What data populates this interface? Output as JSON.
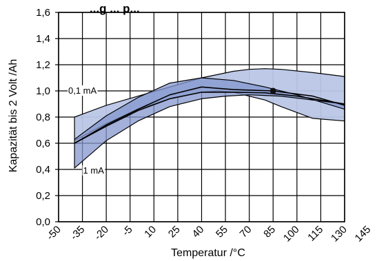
{
  "chart_data": {
    "type": "area",
    "title": "...g ... p...",
    "xlabel": "Temperatur /°C",
    "ylabel": "Kapazität bis 2 Volt /Ah",
    "xlim": [
      -50,
      145
    ],
    "ylim": [
      0,
      1.6
    ],
    "x_ticks": [
      -50,
      -35,
      -20,
      -5,
      10,
      25,
      40,
      55,
      70,
      85,
      100,
      115,
      130,
      145
    ],
    "y_ticks": [
      "0,0",
      "0,2",
      "0,4",
      "0,6",
      "0,8",
      "1,0",
      "1,2",
      "1,4",
      "1,6"
    ],
    "grid": true,
    "bands": [
      {
        "label": "0,1 mA",
        "color": "#b9c6e6",
        "upper": [
          [
            -40,
            0.8
          ],
          [
            -20,
            0.89
          ],
          [
            0,
            0.96
          ],
          [
            20,
            1.03
          ],
          [
            40,
            1.1
          ],
          [
            60,
            1.15
          ],
          [
            70,
            1.165
          ],
          [
            80,
            1.17
          ],
          [
            90,
            1.165
          ],
          [
            110,
            1.14
          ],
          [
            130,
            1.11
          ]
        ],
        "lower": [
          [
            -40,
            0.62
          ],
          [
            -20,
            0.75
          ],
          [
            0,
            0.86
          ],
          [
            20,
            0.94
          ],
          [
            40,
            0.99
          ],
          [
            50,
            1.0
          ],
          [
            60,
            0.99
          ],
          [
            80,
            0.93
          ],
          [
            90,
            0.88
          ],
          [
            110,
            0.79
          ],
          [
            130,
            0.77
          ]
        ]
      },
      {
        "label": "1 mA",
        "color": "#8396ce",
        "upper": [
          [
            -40,
            0.63
          ],
          [
            -20,
            0.81
          ],
          [
            0,
            0.95
          ],
          [
            20,
            1.06
          ],
          [
            40,
            1.1
          ],
          [
            60,
            1.08
          ],
          [
            80,
            1.03
          ],
          [
            100,
            0.97
          ],
          [
            130,
            0.86
          ]
        ],
        "lower": [
          [
            -40,
            0.41
          ],
          [
            -20,
            0.62
          ],
          [
            0,
            0.77
          ],
          [
            20,
            0.88
          ],
          [
            40,
            0.94
          ],
          [
            55,
            0.96
          ],
          [
            70,
            0.97
          ],
          [
            90,
            0.96
          ],
          [
            110,
            0.93
          ],
          [
            130,
            0.9
          ]
        ]
      }
    ],
    "lines": [
      {
        "name": "0,1 mA",
        "points": [
          [
            -40,
            0.6
          ],
          [
            -20,
            0.73
          ],
          [
            0,
            0.85
          ],
          [
            20,
            0.94
          ],
          [
            40,
            0.99
          ],
          [
            60,
            0.99
          ],
          [
            80,
            0.985
          ],
          [
            100,
            0.96
          ],
          [
            130,
            0.9
          ]
        ]
      },
      {
        "name": "1 mA",
        "points": [
          [
            -40,
            0.6
          ],
          [
            -20,
            0.74
          ],
          [
            0,
            0.86
          ],
          [
            20,
            0.97
          ],
          [
            40,
            1.03
          ],
          [
            60,
            1.01
          ],
          [
            85,
            1.0
          ],
          [
            110,
            0.96
          ],
          [
            130,
            0.89
          ]
        ]
      }
    ],
    "marker": {
      "x": 85,
      "y": 1.0
    },
    "annotations": [
      {
        "text": "0,1 mA",
        "x": -35,
        "y": 1.0
      },
      {
        "text": "1 mA",
        "x": -28,
        "y": 0.39
      }
    ]
  }
}
